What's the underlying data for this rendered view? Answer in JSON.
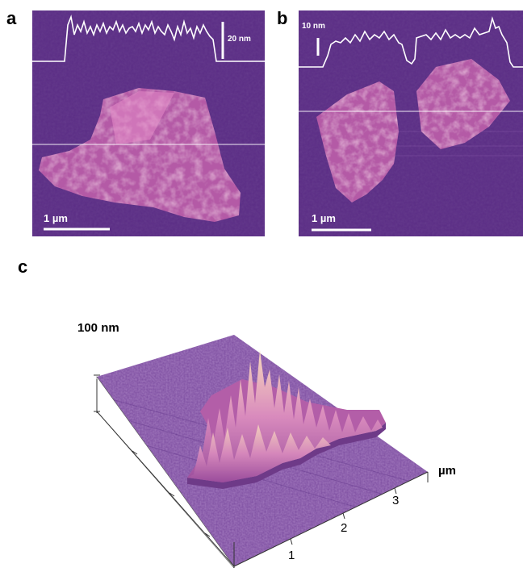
{
  "panels": {
    "a": {
      "letter": "a",
      "scalebar_label": "1 µm",
      "profile_scale_label": "20 nm"
    },
    "b": {
      "letter": "b",
      "scalebar_label": "1 µm",
      "profile_scale_label": "10 nm"
    },
    "c": {
      "letter": "c",
      "z_label": "100 nm",
      "xy_unit": "µm",
      "x_ticks": [
        "1",
        "2",
        "3"
      ]
    }
  },
  "colors": {
    "substrate": "#5b2d86",
    "flake": "#d97fc0",
    "flake_high": "#f4c7a8",
    "profile_line": "#ffffff"
  }
}
